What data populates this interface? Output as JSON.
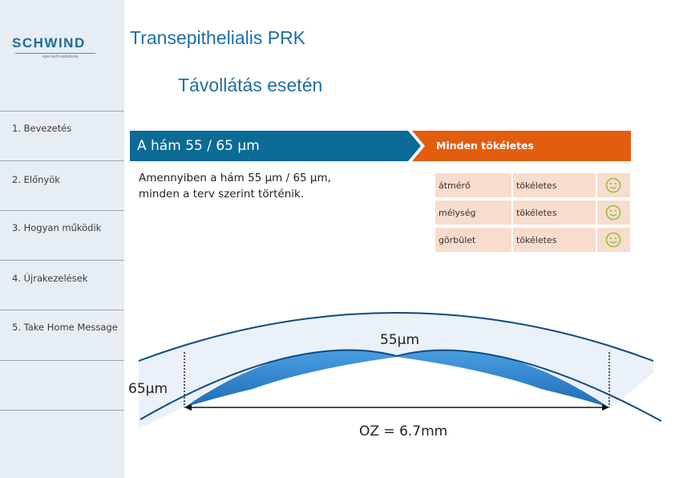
{
  "sidebar": {
    "logo": {
      "brand": "SCHWIND",
      "tagline": "eye-tech-solutions"
    },
    "items": [
      {
        "label": "1. Bevezetés"
      },
      {
        "label": "2. Előnyök"
      },
      {
        "label": "3. Hogyan működik"
      },
      {
        "label": "4. Újrakezelések"
      },
      {
        "label": "5. Take Home Message"
      }
    ]
  },
  "header": {
    "title": "Transepithelialis PRK",
    "subtitle": "Távollátás esetén"
  },
  "banner": {
    "left_label": "A hám 55 / 65 µm",
    "right_label": "Minden tökéletes",
    "left_color": "#0a6b96",
    "right_color": "#e35d0f"
  },
  "body_text": "Amennyiben a hám 55 µm / 65 µm,\nminden a terv szerint történik.",
  "results": [
    {
      "parameter": "átmérő",
      "status": "tökéletes",
      "icon": "smiley-icon"
    },
    {
      "parameter": "mélység",
      "status": "tökéletes",
      "icon": "smiley-icon"
    },
    {
      "parameter": "görbület",
      "status": "tökéletes",
      "icon": "smiley-icon"
    }
  ],
  "diagram": {
    "center_thickness": "55µm",
    "edge_thickness": "65µm",
    "optical_zone": "OZ = 6.7mm"
  }
}
